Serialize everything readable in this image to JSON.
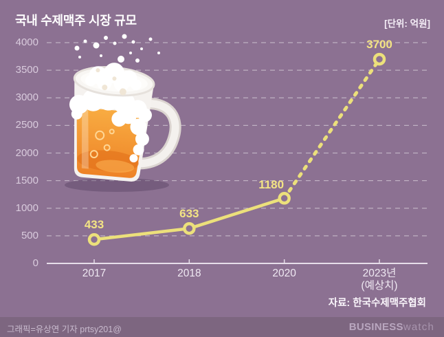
{
  "header": {
    "title": "국내 수제맥주 시장 규모",
    "unit": "[단위: 억원]"
  },
  "source": "자료: 한국수제맥주협회",
  "footer": {
    "credit": "그래픽=유상연 기자 prtsy201@",
    "logo_bold": "BUSINESS",
    "logo_light": "watch"
  },
  "colors": {
    "background": "#8C7192",
    "footer_bar": "#7D6680",
    "grid": "rgba(255,255,255,0.45)",
    "axis": "#E7DEEA",
    "line": "#ECE07B",
    "value_label": "#F3E484",
    "y_tick": "#D9CBDD",
    "x_tick": "#EFE8F2",
    "title": "#FFFFFF",
    "beer_orange": "#F29A38",
    "foam_white": "#FFFFFF"
  },
  "icons": {
    "beer_mug": "beer-mug-illustration"
  },
  "chart_data": {
    "type": "line",
    "title": "국내 수제맥주 시장 규모",
    "unit_label": "[단위: 억원]",
    "categories": [
      "2017",
      "2018",
      "2020",
      "2023년\n(예상치)"
    ],
    "values": [
      433,
      633,
      1180,
      3700
    ],
    "value_labels": [
      "433",
      "633",
      "1180",
      "3700"
    ],
    "series": [
      {
        "name": "국내 수제맥주 시장 규모(억원)",
        "values": [
          433,
          633,
          1180,
          3700
        ]
      }
    ],
    "solid_segment_indices": [
      0,
      1,
      2
    ],
    "dashed_segment_indices": [
      2,
      3
    ],
    "dashed_meaning": "예상치(projection)",
    "yticks": [
      0,
      500,
      1000,
      1500,
      2000,
      2500,
      3000,
      3500,
      4000
    ],
    "ylim": [
      0,
      4000
    ],
    "grid": "dashed-horizontal",
    "legend": "none",
    "marker": "open-circle",
    "line_color": "#ECE07B",
    "source": "자료: 한국수제맥주협회"
  }
}
